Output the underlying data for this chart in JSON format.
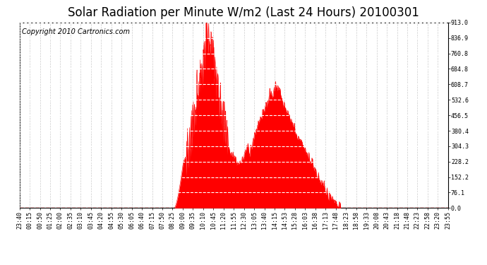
{
  "title": "Solar Radiation per Minute W/m2 (Last 24 Hours) 20100301",
  "copyright": "Copyright 2010 Cartronics.com",
  "y_ticks": [
    0.0,
    76.1,
    152.2,
    228.2,
    304.3,
    380.4,
    456.5,
    532.6,
    608.7,
    684.8,
    760.8,
    836.9,
    913.0
  ],
  "y_min": 0.0,
  "y_max": 913.0,
  "bg_color": "#ffffff",
  "fill_color": "#ff0000",
  "grid_color": "#ffffff",
  "vgrid_color": "#cccccc",
  "border_color": "#000000",
  "title_fontsize": 12,
  "copyright_fontsize": 7,
  "tick_fontsize": 6,
  "x_tick_labels": [
    "23:40",
    "00:15",
    "00:50",
    "01:25",
    "02:00",
    "02:35",
    "03:10",
    "03:45",
    "04:20",
    "04:55",
    "05:30",
    "06:05",
    "06:40",
    "07:15",
    "07:50",
    "08:25",
    "09:00",
    "09:35",
    "10:10",
    "10:45",
    "11:20",
    "11:55",
    "12:30",
    "13:05",
    "13:40",
    "14:15",
    "14:53",
    "15:28",
    "16:03",
    "16:38",
    "17:13",
    "17:48",
    "18:23",
    "18:58",
    "19:33",
    "20:08",
    "20:43",
    "21:18",
    "21:48",
    "22:23",
    "22:58",
    "23:20",
    "23:55"
  ]
}
